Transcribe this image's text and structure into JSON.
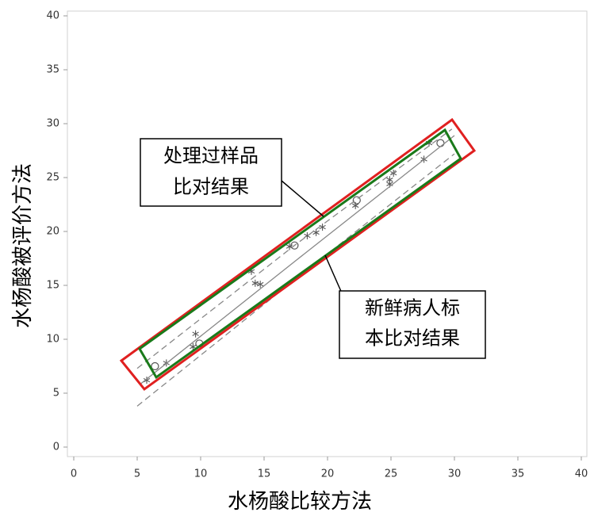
{
  "chart_data": {
    "type": "scatter",
    "x_label": "水杨酸比较方法",
    "y_label": "水杨酸被评价方法",
    "xlim": [
      0,
      40
    ],
    "ylim": [
      0,
      40
    ],
    "xticks": [
      0,
      5,
      10,
      15,
      20,
      25,
      30,
      35,
      40
    ],
    "yticks": [
      0,
      5,
      10,
      15,
      20,
      25,
      30,
      35,
      40
    ],
    "series": [
      {
        "marker": "asterisk",
        "color": "#555555",
        "x": [
          5.75,
          7.3,
          9.6,
          9.4,
          14.0,
          14.3,
          14.7,
          17.0,
          18.4,
          19.1,
          19.6,
          22.2,
          24.9,
          24.9,
          25.2,
          27.6,
          28.0
        ],
        "values": [
          6.2,
          7.8,
          10.5,
          9.3,
          16.3,
          15.2,
          15.1,
          18.6,
          19.6,
          19.9,
          20.4,
          22.4,
          24.4,
          24.8,
          25.4,
          26.7,
          28.2
        ]
      },
      {
        "marker": "circle",
        "color": "#555555",
        "x": [
          6.4,
          9.9,
          17.4,
          22.3,
          28.9
        ],
        "values": [
          7.5,
          9.6,
          18.7,
          22.9,
          28.2
        ]
      },
      {
        "line": "solid",
        "color": "#888888",
        "x": [
          5.2,
          17.5,
          30.0
        ],
        "values": [
          5.8,
          17.3,
          28.9
        ]
      },
      {
        "line": "dashed",
        "color": "#888888",
        "x": [
          5.0,
          17.5,
          29.8
        ],
        "values": [
          7.3,
          18.8,
          29.5
        ]
      },
      {
        "line": "dashed",
        "color": "#888888",
        "x": [
          5.0,
          17.5,
          30.0
        ],
        "values": [
          3.8,
          15.6,
          27.2
        ]
      }
    ],
    "annotations": [
      {
        "lines": [
          "处理过样品",
          "比对结果"
        ]
      },
      {
        "lines": [
          "新鲜病人标",
          "本比对结果"
        ]
      }
    ]
  }
}
